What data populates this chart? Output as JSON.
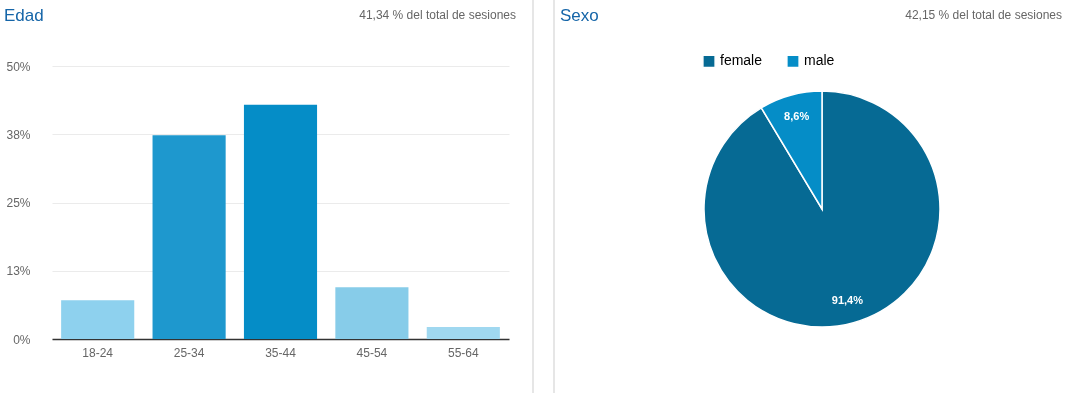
{
  "chart_data": [
    {
      "type": "bar",
      "title": "Edad",
      "subtitle": "41,34 % del total de sesiones",
      "categories": [
        "18-24",
        "25-34",
        "35-44",
        "45-54",
        "55-64"
      ],
      "values": [
        7.1,
        37.3,
        42.9,
        9.5,
        2.2
      ],
      "colors": [
        "#8ed1ee",
        "#1e98ce",
        "#058dc7",
        "#87cce9",
        "#a0d8f0"
      ],
      "ylim": [
        0,
        50
      ],
      "yticks": [
        {
          "value": 0,
          "label": "0%"
        },
        {
          "value": 12.5,
          "label": "13%"
        },
        {
          "value": 25,
          "label": "25%"
        },
        {
          "value": 37.5,
          "label": "38%"
        },
        {
          "value": 50,
          "label": "50%"
        }
      ],
      "grid": "y"
    },
    {
      "type": "pie",
      "title": "Sexo",
      "subtitle": "42,15 % del total de sesiones",
      "categories": [
        "female",
        "male"
      ],
      "values": [
        91.4,
        8.6
      ],
      "colors": [
        "#066a94",
        "#058dc7"
      ],
      "value_labels": [
        "91,4%",
        "8,6%"
      ],
      "legend": "top"
    }
  ]
}
